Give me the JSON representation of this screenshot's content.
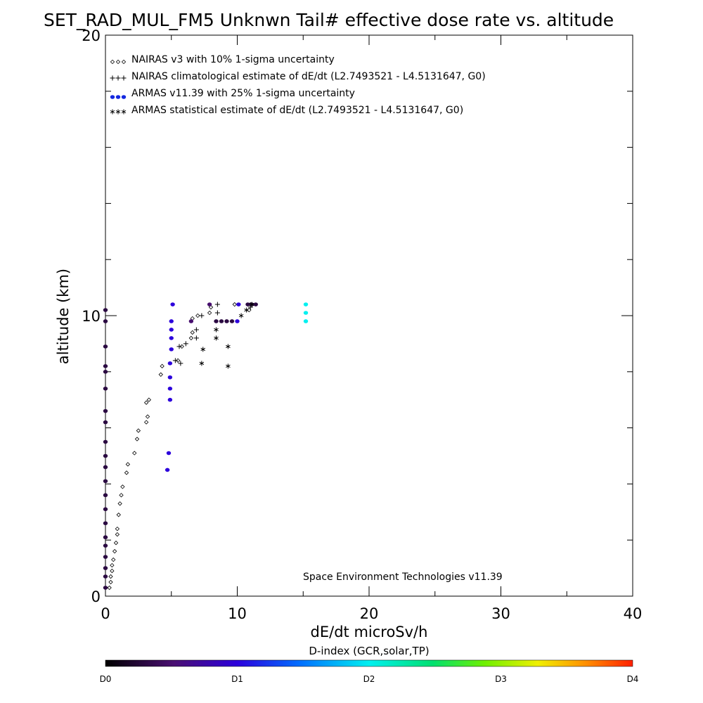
{
  "chart_data": {
    "type": "scatter",
    "title": "SET_RAD_MUL_FM5 Unknwn Tail#  effective dose rate vs. altitude",
    "xlabel": "dE/dt microSv/h",
    "ylabel": "altitude (km)",
    "xlim": [
      0,
      40
    ],
    "ylim": [
      0,
      20
    ],
    "x_ticks": [
      "0",
      "10",
      "20",
      "30",
      "40"
    ],
    "y_ticks": [
      "0",
      "10",
      "20"
    ],
    "legend_position": "top-left",
    "credit": "Space Environment Technologies v11.39",
    "colorbar": {
      "title": "D-index (GCR,solar,TP)",
      "ticks": [
        "D0",
        "D1",
        "D2",
        "D3",
        "D4"
      ],
      "tick_values": [
        0,
        1,
        2,
        4,
        8
      ],
      "max": 8
    },
    "series": [
      {
        "name": "NAIRAS v3 with 10% 1-sigma uncertainty",
        "marker": "diamond",
        "legend_symbol": "◇◇◇",
        "points": [
          [
            0.3,
            0.3
          ],
          [
            0.4,
            0.5
          ],
          [
            0.4,
            0.7
          ],
          [
            0.5,
            0.9
          ],
          [
            0.5,
            1.1
          ],
          [
            0.6,
            1.3
          ],
          [
            0.7,
            1.6
          ],
          [
            0.8,
            1.9
          ],
          [
            0.9,
            2.2
          ],
          [
            0.9,
            2.4
          ],
          [
            1.0,
            2.9
          ],
          [
            1.1,
            3.3
          ],
          [
            1.2,
            3.6
          ],
          [
            1.3,
            3.9
          ],
          [
            1.6,
            4.4
          ],
          [
            1.7,
            4.7
          ],
          [
            2.2,
            5.1
          ],
          [
            2.4,
            5.6
          ],
          [
            2.5,
            5.9
          ],
          [
            3.1,
            6.2
          ],
          [
            3.2,
            6.4
          ],
          [
            3.1,
            6.9
          ],
          [
            3.3,
            7.0
          ],
          [
            4.2,
            7.9
          ],
          [
            4.3,
            8.2
          ],
          [
            5.5,
            8.4
          ],
          [
            5.8,
            8.9
          ],
          [
            6.5,
            9.2
          ],
          [
            6.6,
            9.4
          ],
          [
            6.6,
            9.9
          ],
          [
            7.0,
            10.0
          ],
          [
            7.9,
            10.1
          ],
          [
            8.0,
            10.3
          ],
          [
            9.8,
            10.4
          ],
          [
            10.9,
            10.2
          ],
          [
            11.0,
            10.4
          ]
        ]
      },
      {
        "name": "NAIRAS climatological estimate of dE/dt (L2.7493521 - L4.5131647, G0)",
        "marker": "plus",
        "legend_symbol": "+++",
        "points": [
          [
            5.3,
            8.4
          ],
          [
            5.7,
            8.3
          ],
          [
            5.6,
            8.9
          ],
          [
            6.1,
            9.0
          ],
          [
            6.9,
            9.2
          ],
          [
            6.9,
            9.5
          ],
          [
            7.3,
            10.0
          ],
          [
            8.5,
            10.1
          ],
          [
            8.5,
            10.4
          ],
          [
            11.0,
            10.3
          ]
        ]
      },
      {
        "name": "ARMAS v11.39 with 25% 1-sigma uncertainty",
        "marker": "dot",
        "legend_symbol": "●●●",
        "points": [
          [
            0.0,
            0.3,
            0.3
          ],
          [
            0.0,
            0.7,
            0.3
          ],
          [
            0.0,
            1.0,
            0.3
          ],
          [
            0.0,
            1.4,
            0.3
          ],
          [
            0.0,
            1.8,
            0.3
          ],
          [
            0.0,
            2.1,
            0.3
          ],
          [
            0.0,
            2.6,
            0.3
          ],
          [
            0.0,
            3.1,
            0.3
          ],
          [
            0.0,
            3.6,
            0.3
          ],
          [
            0.0,
            4.1,
            0.3
          ],
          [
            0.0,
            4.6,
            0.3
          ],
          [
            0.0,
            5.0,
            0.3
          ],
          [
            0.0,
            5.5,
            0.3
          ],
          [
            0.0,
            6.2,
            0.3
          ],
          [
            0.0,
            6.6,
            0.3
          ],
          [
            0.0,
            7.4,
            0.3
          ],
          [
            0.0,
            8.0,
            0.3
          ],
          [
            0.0,
            8.2,
            0.3
          ],
          [
            0.0,
            8.9,
            0.3
          ],
          [
            0.0,
            9.8,
            0.3
          ],
          [
            0.0,
            10.2,
            0.3
          ],
          [
            4.7,
            4.5,
            1.0
          ],
          [
            4.8,
            5.1,
            1.0
          ],
          [
            4.9,
            7.0,
            1.0
          ],
          [
            4.9,
            7.4,
            1.0
          ],
          [
            4.9,
            7.8,
            1.0
          ],
          [
            4.9,
            8.3,
            1.0
          ],
          [
            5.0,
            8.8,
            1.0
          ],
          [
            5.0,
            9.2,
            1.0
          ],
          [
            5.0,
            9.5,
            1.0
          ],
          [
            5.0,
            9.8,
            1.0
          ],
          [
            5.1,
            10.4,
            1.0
          ],
          [
            6.5,
            9.8,
            0.5
          ],
          [
            7.9,
            10.4,
            0.5
          ],
          [
            8.4,
            9.8,
            0.3
          ],
          [
            8.8,
            9.8,
            0.3
          ],
          [
            9.2,
            9.8,
            0.3
          ],
          [
            9.6,
            9.8,
            0.3
          ],
          [
            10.0,
            9.8,
            1.0
          ],
          [
            10.1,
            10.4,
            1.0
          ],
          [
            10.8,
            10.4,
            0.3
          ],
          [
            11.1,
            10.4,
            0.3
          ],
          [
            11.4,
            10.4,
            0.3
          ],
          [
            15.2,
            9.8,
            2.0
          ],
          [
            15.2,
            10.1,
            2.0
          ],
          [
            15.2,
            10.4,
            2.0
          ]
        ]
      },
      {
        "name": "ARMAS statistical estimate of dE/dt (L2.7493521 - L4.5131647, G0)",
        "marker": "star",
        "legend_symbol": "✱✱✱",
        "points": [
          [
            7.3,
            8.3
          ],
          [
            7.4,
            8.8
          ],
          [
            8.4,
            9.2
          ],
          [
            8.4,
            9.5
          ],
          [
            9.3,
            8.2
          ],
          [
            9.3,
            8.9
          ],
          [
            10.3,
            10.0
          ],
          [
            10.7,
            10.2
          ],
          [
            11.1,
            10.4
          ]
        ]
      }
    ]
  }
}
